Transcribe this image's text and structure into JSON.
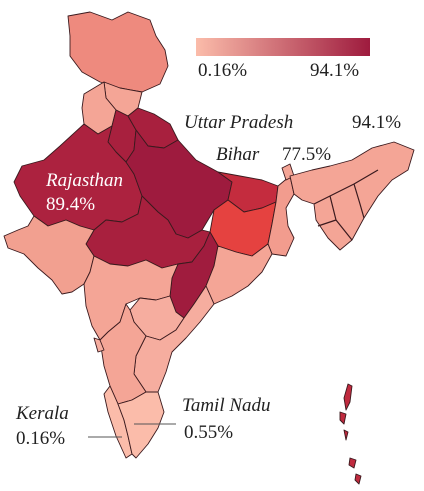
{
  "legend": {
    "min_label": "0.16%",
    "max_label": "94.1%",
    "min_color": "#fbbcaa",
    "max_color": "#9e1b3e"
  },
  "labels": {
    "rajasthan_name": "Rajasthan",
    "rajasthan_value": "89.4%",
    "up_name": "Uttar Pradesh",
    "up_value": "94.1%",
    "bihar_name": "Bihar",
    "bihar_value": "77.5%",
    "kerala_name": "Kerala",
    "kerala_value": "0.16%",
    "tn_name": "Tamil Nadu",
    "tn_value": "0.55%"
  },
  "states": [
    {
      "name": "Jammu and Kashmir",
      "color": "#ee8a7e"
    },
    {
      "name": "Himachal Pradesh",
      "color": "#f4a596"
    },
    {
      "name": "Punjab",
      "color": "#f4a596"
    },
    {
      "name": "Haryana",
      "color": "#a8203e"
    },
    {
      "name": "Uttarakhand",
      "color": "#a8203e"
    },
    {
      "name": "Rajasthan",
      "color": "#ac223f"
    },
    {
      "name": "Uttar Pradesh",
      "color": "#9e1b3e"
    },
    {
      "name": "Gujarat",
      "color": "#f2a090"
    },
    {
      "name": "Madhya Pradesh",
      "color": "#a8203e"
    },
    {
      "name": "Chhattisgarh",
      "color": "#a01c3e"
    },
    {
      "name": "Bihar",
      "color": "#c42c3e"
    },
    {
      "name": "Jharkhand",
      "color": "#e54240"
    },
    {
      "name": "West Bengal",
      "color": "#f29c8e"
    },
    {
      "name": "Odisha",
      "color": "#f4a596"
    },
    {
      "name": "Maharashtra",
      "color": "#f4a596"
    },
    {
      "name": "Telangana",
      "color": "#f6ad9f"
    },
    {
      "name": "Andhra Pradesh",
      "color": "#f6ad9f"
    },
    {
      "name": "Karnataka",
      "color": "#f4a596"
    },
    {
      "name": "Goa",
      "color": "#f6ad9f"
    },
    {
      "name": "Kerala",
      "color": "#fbbcaa"
    },
    {
      "name": "Tamil Nadu",
      "color": "#fbbcaa"
    },
    {
      "name": "Northeast",
      "color": "#f4a596"
    },
    {
      "name": "Sikkim",
      "color": "#f4a596"
    },
    {
      "name": "Andaman and Nicobar",
      "color": "#c02a3e"
    }
  ]
}
